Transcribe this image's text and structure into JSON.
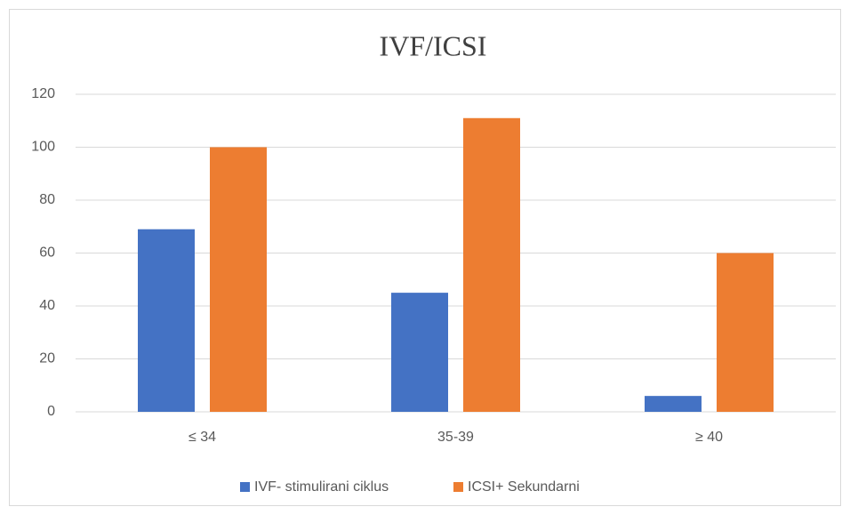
{
  "chart_data": {
    "type": "bar",
    "title": "IVF/ICSI",
    "categories": [
      "≤ 34",
      "35-39",
      "≥ 40"
    ],
    "series": [
      {
        "name": "IVF- stimulirani ciklus",
        "color": "#4472c4",
        "values": [
          69,
          45,
          6
        ]
      },
      {
        "name": "ICSI+ Sekundarni",
        "color": "#ed7d31",
        "values": [
          100,
          111,
          60
        ]
      }
    ],
    "ylim": [
      0,
      120
    ],
    "yticks": [
      0,
      20,
      40,
      60,
      80,
      100,
      120
    ],
    "grid": true,
    "legend": "bottom"
  }
}
